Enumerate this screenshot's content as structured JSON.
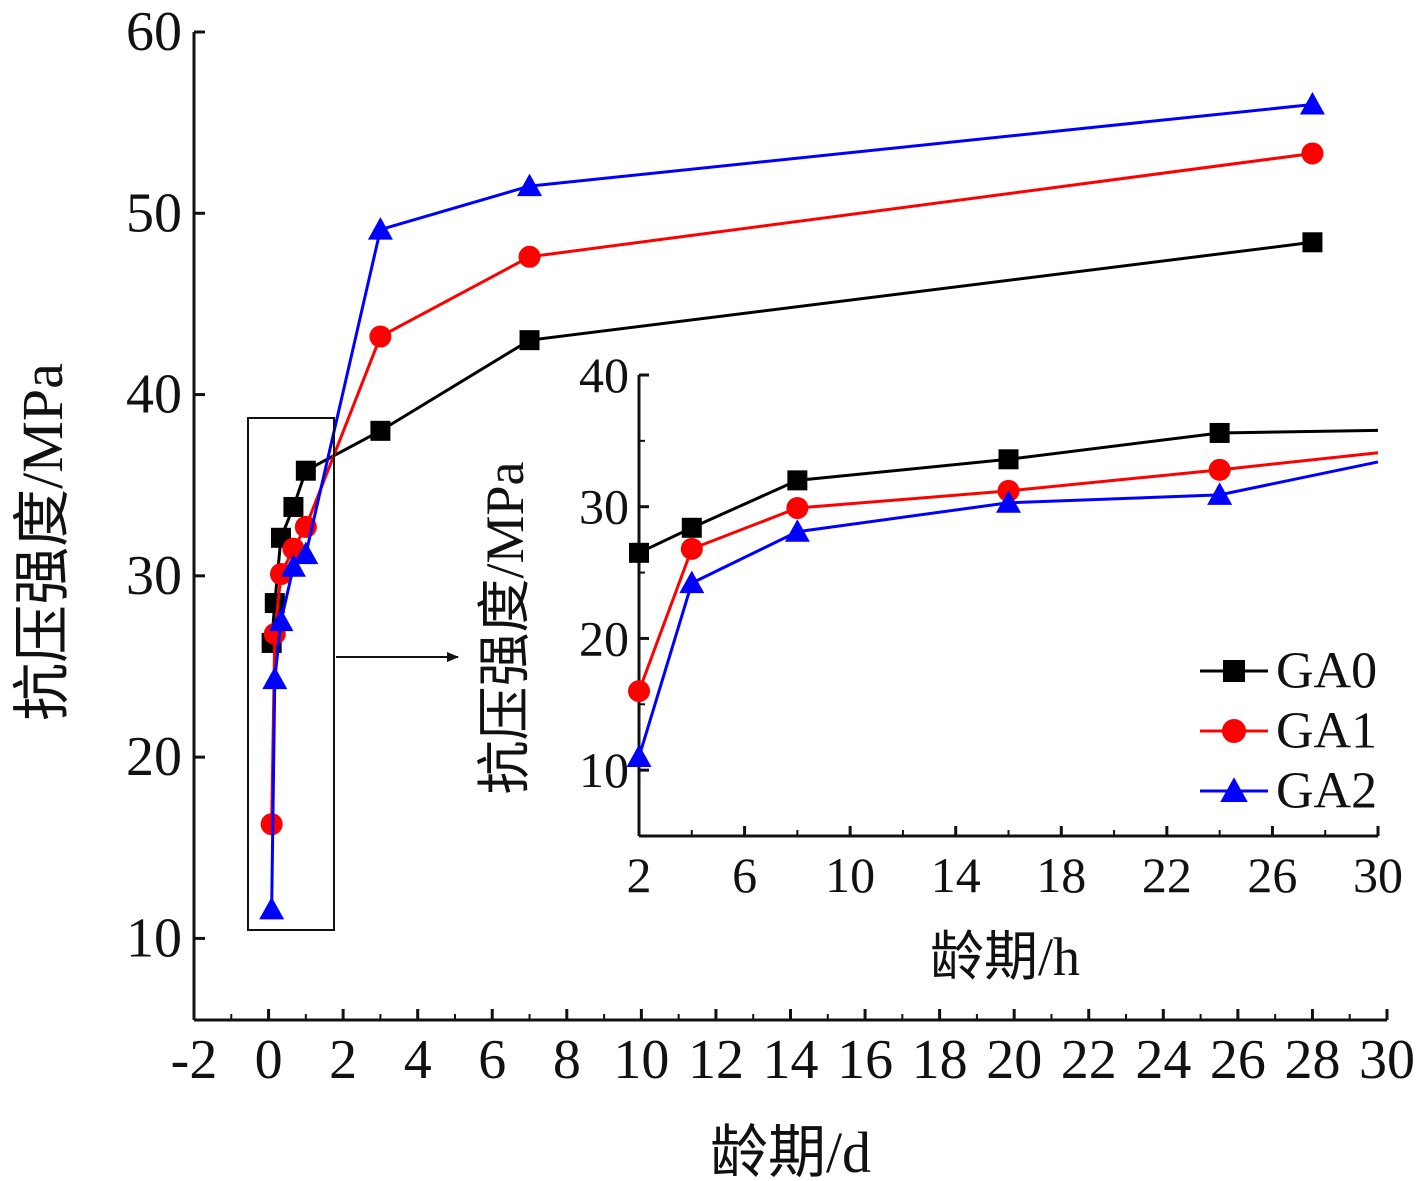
{
  "chart_data": [
    {
      "type": "line",
      "xlabel": "龄期/d",
      "ylabel": "抗压强度/MPa",
      "xlim": [
        -2,
        30
      ],
      "ylim": [
        5.5,
        60
      ],
      "xticks": [
        "-2",
        "0",
        "2",
        "4",
        "6",
        "8",
        "10",
        "12",
        "14",
        "16",
        "18",
        "20",
        "22",
        "24",
        "26",
        "28",
        "30"
      ],
      "yticks": [
        "10",
        "20",
        "30",
        "40",
        "50",
        "60"
      ],
      "grid": false,
      "series": [
        {
          "name": "GA0",
          "color": "#000000",
          "marker": "square",
          "x": [
            0.083,
            0.167,
            0.333,
            0.667,
            1,
            3,
            7,
            28
          ],
          "y": [
            26.3,
            28.5,
            32.1,
            33.8,
            35.8,
            38,
            43,
            48.4
          ]
        },
        {
          "name": "GA1",
          "color": "#ff0000",
          "marker": "circle",
          "x": [
            0.083,
            0.167,
            0.333,
            0.667,
            1,
            3,
            7,
            28
          ],
          "y": [
            16.3,
            26.8,
            30.1,
            31.5,
            32.7,
            43.2,
            47.6,
            53.3
          ]
        },
        {
          "name": "GA2",
          "color": "#0000ff",
          "marker": "triangle",
          "x": [
            0.083,
            0.167,
            0.333,
            0.667,
            1,
            3,
            7,
            28
          ],
          "y": [
            11.6,
            24.3,
            27.5,
            30.5,
            31.2,
            49.1,
            51.5,
            56
          ]
        }
      ]
    },
    {
      "type": "line",
      "xlabel": "龄期/h",
      "ylabel": "抗压强度/MPa",
      "xlim": [
        2,
        30
      ],
      "ylim": [
        5,
        40
      ],
      "xticks": [
        "2",
        "6",
        "10",
        "14",
        "18",
        "22",
        "26",
        "30"
      ],
      "yticks": [
        "10",
        "20",
        "30",
        "40"
      ],
      "legend": "right",
      "series": [
        {
          "name": "GA0",
          "color": "#000000",
          "marker": "square",
          "x": [
            2,
            4,
            8,
            16,
            24,
            30
          ],
          "y": [
            26.5,
            28.4,
            32,
            33.6,
            35.6,
            35.8
          ]
        },
        {
          "name": "GA1",
          "color": "#ff0000",
          "marker": "circle",
          "x": [
            2,
            4,
            8,
            16,
            24,
            30
          ],
          "y": [
            16,
            26.8,
            29.9,
            31.2,
            32.8,
            34.1
          ]
        },
        {
          "name": "GA2",
          "color": "#0000ff",
          "marker": "triangle",
          "x": [
            2,
            4,
            8,
            16,
            24,
            30
          ],
          "y": [
            11,
            24.2,
            28.1,
            30.3,
            30.9,
            33.4
          ]
        }
      ]
    }
  ]
}
